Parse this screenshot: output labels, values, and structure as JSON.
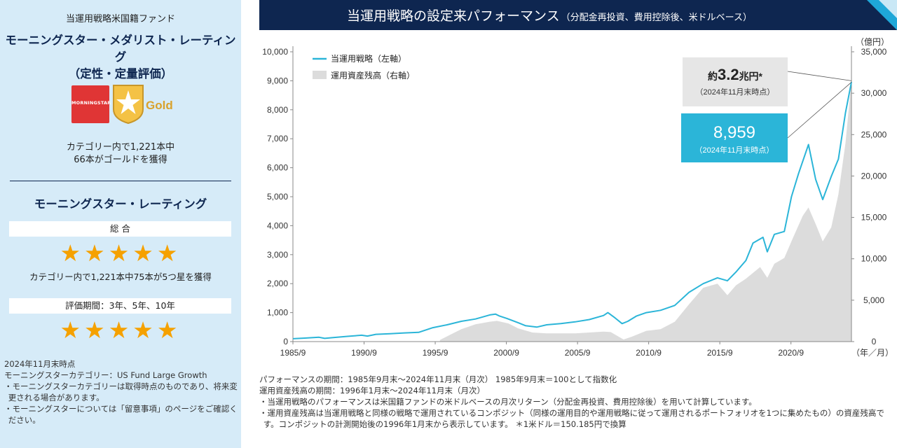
{
  "left_panel": {
    "fund_name": "当運用戦略米国籍ファンド",
    "medalist_title_1": "モーニングスター・メダリスト・レーティング",
    "medalist_title_2": "（定性・定量評価）",
    "logo_brand": "MORNINGSTAR",
    "gold_label": "Gold",
    "category_text_1": "カテゴリー内で1,221本中",
    "category_text_2": "66本がゴールドを獲得",
    "rating_title": "モーニングスター・レーティング",
    "overall_label": "総 合",
    "overall_stars": 5,
    "overall_caption": "カテゴリー内で1,221本中75本が5つ星を獲得",
    "period_label": "評価期間：3年、5年、10年",
    "period_stars": 5,
    "notes": [
      "2024年11月末時点",
      "モーニングスターカテゴリー：US Fund Large Growth",
      "・モーニングスターカテゴリーは取得時点のものであり、将来変更される場合があります。",
      "・モーニングスターについては「留意事項」のページをご確認ください。"
    ]
  },
  "header": {
    "title": "当運用戦略の設定来パフォーマンス",
    "subtitle": "（分配金再投資、費用控除後、米ドルベース）",
    "accent_color": "#1ea7d8",
    "bar_color": "#0e2650"
  },
  "chart_data": {
    "type": "line",
    "legend_position": "top-left",
    "legend": [
      "当運用戦略（左軸）",
      "運用資産残高（右軸）"
    ],
    "y_left": {
      "min": 0,
      "max": 10000,
      "ticks": [
        "0",
        "1,000",
        "2,000",
        "3,000",
        "4,000",
        "5,000",
        "6,000",
        "7,000",
        "8,000",
        "9,000",
        "10,000"
      ]
    },
    "y_right": {
      "min": 0,
      "max": 35000,
      "unit": "（億円）",
      "ticks": [
        "0",
        "5,000",
        "10,000",
        "15,000",
        "20,000",
        "25,000",
        "30,000",
        "35,000"
      ]
    },
    "x": {
      "ticks": [
        "1985/9",
        "1990/9",
        "1995/9",
        "2000/9",
        "2005/9",
        "2010/9",
        "2015/9",
        "2020/9"
      ],
      "unit": "（年／月）",
      "start": 1985.667,
      "end": 2024.917
    },
    "series": [
      {
        "name": "当運用戦略（左軸）",
        "axis": "left",
        "color": "#2bb5d8",
        "x": [
          1985.67,
          1986.5,
          1987.5,
          1987.9,
          1988.5,
          1989.5,
          1990.5,
          1990.9,
          1991.5,
          1992.5,
          1993.5,
          1994.5,
          1995.5,
          1996.5,
          1997.5,
          1998.5,
          1999.5,
          1999.9,
          2000.2,
          2000.7,
          2001.5,
          2002.0,
          2002.8,
          2003.5,
          2004.5,
          2005.5,
          2006.5,
          2007.5,
          2007.8,
          2008.3,
          2008.8,
          2009.2,
          2009.8,
          2010.5,
          2011.5,
          2012.5,
          2013.5,
          2014.5,
          2015.5,
          2016.2,
          2016.8,
          2017.5,
          2018.0,
          2018.7,
          2019.0,
          2019.5,
          2020.2,
          2020.7,
          2021.2,
          2021.9,
          2022.4,
          2022.9,
          2023.5,
          2024.0,
          2024.5,
          2024.917
        ],
        "y": [
          100,
          120,
          150,
          110,
          140,
          180,
          220,
          190,
          250,
          270,
          300,
          320,
          480,
          580,
          700,
          780,
          920,
          950,
          880,
          800,
          650,
          550,
          500,
          580,
          620,
          680,
          760,
          900,
          1000,
          820,
          620,
          700,
          880,
          1000,
          1080,
          1250,
          1700,
          2000,
          2200,
          2100,
          2400,
          2800,
          3400,
          3600,
          3100,
          3700,
          3800,
          5000,
          5800,
          6800,
          5600,
          4900,
          5700,
          6300,
          7900,
          8959
        ]
      },
      {
        "name": "運用資産残高（右軸）",
        "axis": "right",
        "color": "#dcdcdc",
        "x": [
          1996.0,
          1996.8,
          1997.5,
          1998.5,
          1999.5,
          2000.0,
          2000.8,
          2001.5,
          2002.5,
          2003.5,
          2004.5,
          2005.5,
          2006.5,
          2007.5,
          2008.0,
          2008.9,
          2009.5,
          2010.5,
          2011.5,
          2012.5,
          2013.5,
          2014.5,
          2015.5,
          2016.2,
          2016.8,
          2017.5,
          2018.5,
          2019.0,
          2019.5,
          2020.2,
          2020.8,
          2021.5,
          2021.9,
          2022.4,
          2022.9,
          2023.5,
          2024.0,
          2024.5,
          2024.917
        ],
        "y": [
          200,
          900,
          1500,
          2100,
          2400,
          2500,
          2200,
          1600,
          1100,
          1000,
          1000,
          1000,
          1100,
          1200,
          1150,
          250,
          600,
          1300,
          1500,
          2400,
          4500,
          6500,
          7000,
          5600,
          6800,
          7600,
          9000,
          7700,
          9400,
          10100,
          12500,
          15200,
          16200,
          14200,
          12100,
          13800,
          17800,
          24000,
          31500
        ]
      }
    ],
    "annotations": [
      {
        "prefix": "約",
        "value": "3.2",
        "unit": "兆円*",
        "note": "（2024年11月末時点）"
      },
      {
        "value": "8,959",
        "note": "（2024年11月末時点）"
      }
    ]
  },
  "footnotes": [
    "パフォーマンスの期間：1985年9月末～2024年11月末（月次） 1985年9月末＝100として指数化",
    "運用資産残高の期間：1996年1月末～2024年11月末（月次）",
    "・当運用戦略のパフォーマンスは米国籍ファンドの米ドルベースの月次リターン（分配金再投資、費用控除後）を用いて計算しています。",
    "・運用資産残高は当運用戦略と同様の戦略で運用されているコンポジット（同様の運用目的や運用戦略に従って運用されるポートフォリオを1つに集めたもの）の資産残高です。コンポジットの計測開始後の1996年1月末から表示しています。 ＊1米ドル＝150.185円で換算"
  ]
}
